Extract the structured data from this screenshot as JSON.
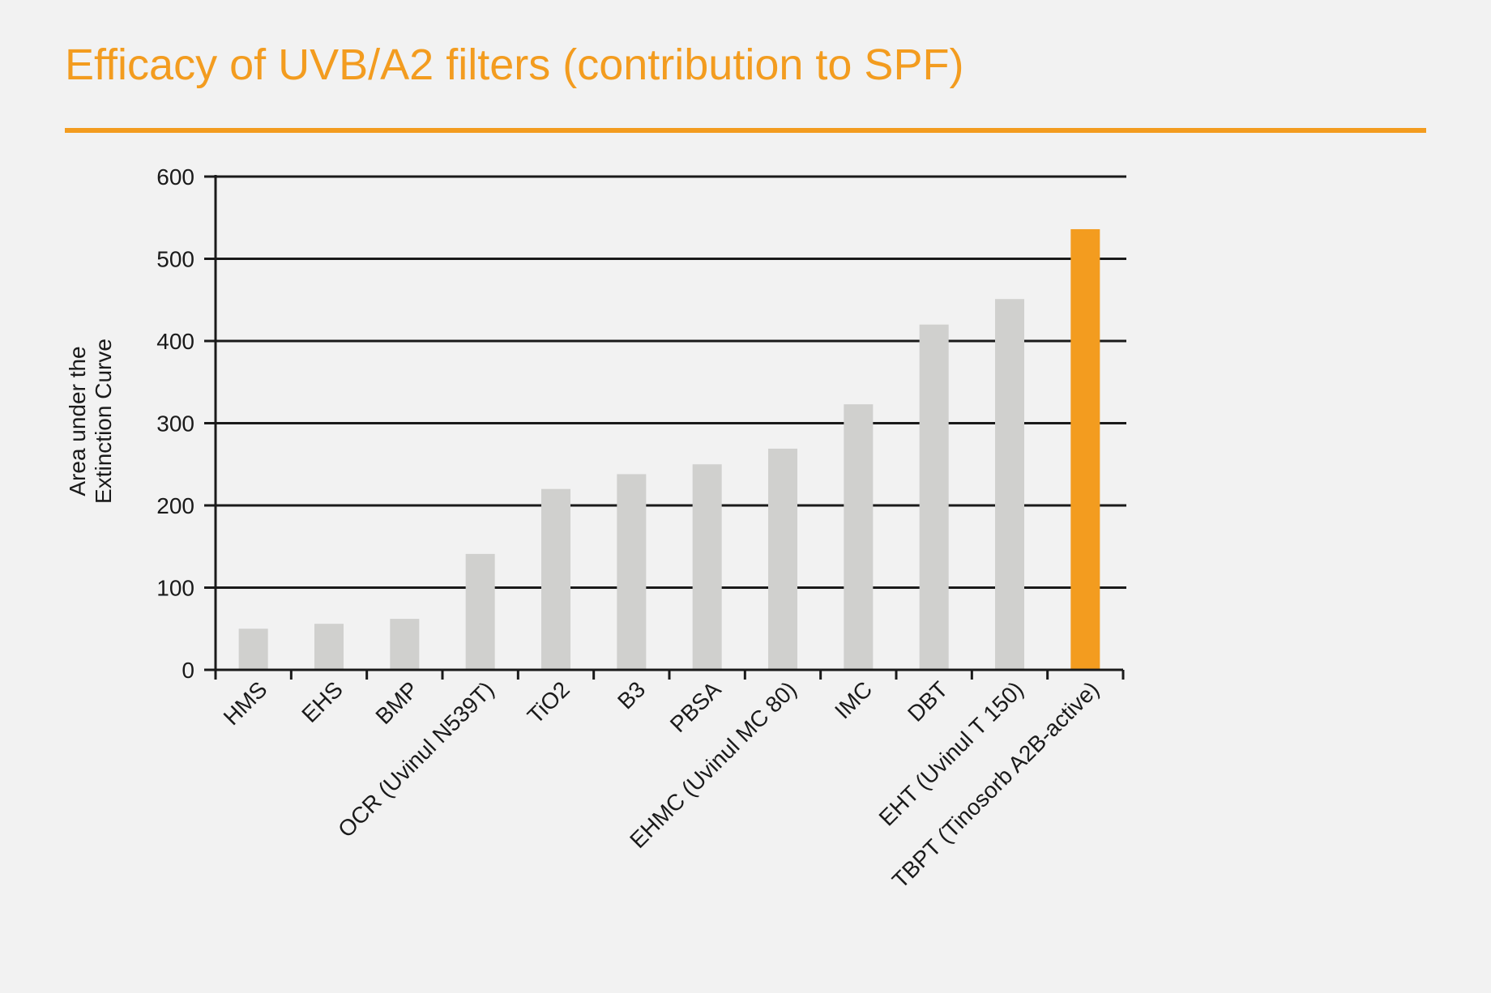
{
  "page": {
    "title": "Efficacy of UVB/A2 filters (contribution to SPF)"
  },
  "colors": {
    "accent": "#f39c1f",
    "bar_default": "#d0d0ce",
    "bar_highlight": "#f39c1f",
    "axis": "#1a1a1a",
    "background": "#f2f2f2"
  },
  "chart_data": {
    "type": "bar",
    "title": "Efficacy of UVB/A2 filters (contribution to SPF)",
    "xlabel": "",
    "ylabel": [
      "Area under the",
      "Extinction Curve"
    ],
    "ylim": [
      0,
      600
    ],
    "yticks": [
      0,
      100,
      200,
      300,
      400,
      500,
      600
    ],
    "grid": true,
    "categories": [
      "HMS",
      "EHS",
      "BMP",
      "OCR (Uvinul N539T)",
      "TiO2",
      "B3",
      "PBSA",
      "EHMC (Uvinul MC 80)",
      "IMC",
      "DBT",
      "EHT (Uvinul T 150)",
      "TBPT (Tinosorb A2B-active)"
    ],
    "values": [
      50,
      56,
      62,
      141,
      220,
      238,
      250,
      269,
      323,
      420,
      451,
      536
    ],
    "highlight": "TBPT (Tinosorb A2B-active)"
  }
}
